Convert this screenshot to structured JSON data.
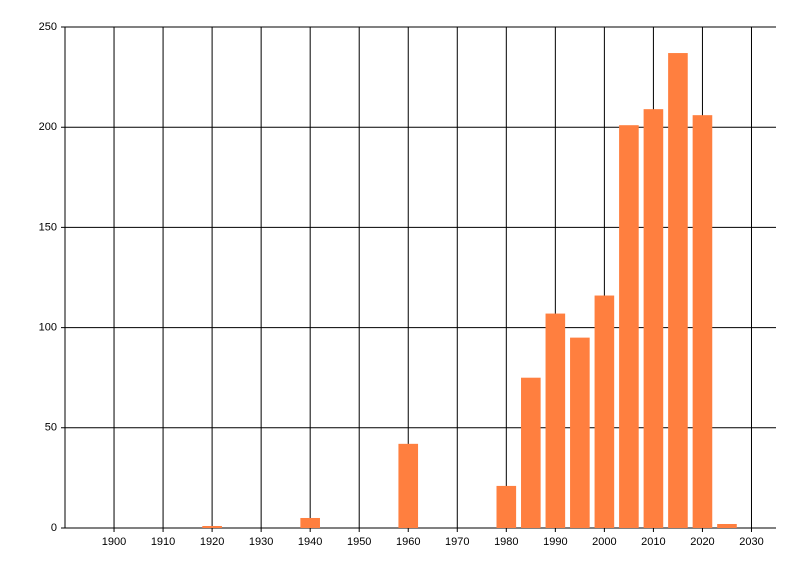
{
  "chart_data": {
    "type": "bar",
    "x": [
      1920,
      1940,
      1960,
      1980,
      1985,
      1990,
      1995,
      2000,
      2005,
      2010,
      2015,
      2020,
      2025
    ],
    "values": [
      1,
      5,
      42,
      21,
      75,
      107,
      95,
      116,
      201,
      209,
      237,
      206,
      2
    ],
    "color": "#ff7f3f",
    "xlim": [
      1890,
      2035
    ],
    "xticks": [
      1900,
      1910,
      1920,
      1930,
      1940,
      1950,
      1960,
      1970,
      1980,
      1990,
      2000,
      2010,
      2020,
      2030
    ],
    "ylim": [
      0,
      250
    ],
    "yticks": [
      0,
      50,
      100,
      150,
      200,
      250
    ],
    "grid": true
  }
}
